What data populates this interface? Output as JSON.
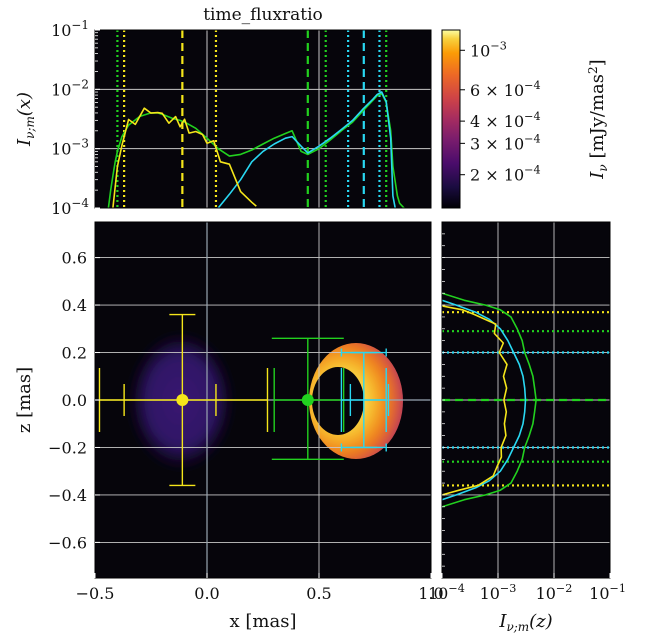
{
  "title": "time_fluxratio",
  "colors": {
    "background": "#06050b",
    "grid": "#c8c8c8",
    "yellow": "#f5e61a",
    "green": "#22d11f",
    "cyan": "#29d8f2",
    "crosshair": "#9aa6b2"
  },
  "chart_data": [
    {
      "type": "line",
      "panel": "top",
      "ylabel": "I_{ν;m}(x)",
      "xlim": [
        -0.5,
        1.0
      ],
      "ylim": [
        0.0001,
        0.1
      ],
      "yscale": "log",
      "ytick_labels": [
        "10^-4",
        "10^-3",
        "10^-2",
        "10^-1"
      ],
      "grid": true,
      "series": [
        {
          "color": "green",
          "x": [
            -0.44,
            -0.43,
            -0.42,
            -0.41,
            -0.4,
            -0.38,
            -0.35,
            -0.3,
            -0.25,
            -0.22,
            -0.2,
            -0.15,
            -0.12,
            -0.1,
            -0.05,
            0.0,
            0.05,
            0.1,
            0.15,
            0.2,
            0.25,
            0.3,
            0.35,
            0.38,
            0.42,
            0.45,
            0.5,
            0.55,
            0.6,
            0.65,
            0.7,
            0.74,
            0.76,
            0.78,
            0.8,
            0.82,
            0.83,
            0.85,
            0.86,
            0.88
          ],
          "y": [
            0.0001,
            0.0002,
            0.00035,
            0.0006,
            0.0009,
            0.0016,
            0.0025,
            0.0035,
            0.004,
            0.004,
            0.0038,
            0.0032,
            0.003,
            0.0028,
            0.0022,
            0.0015,
            0.001,
            0.00075,
            0.0008,
            0.00095,
            0.0012,
            0.0015,
            0.0018,
            0.002,
            0.0009,
            0.0008,
            0.001,
            0.0014,
            0.002,
            0.0028,
            0.0045,
            0.0065,
            0.0078,
            0.0085,
            0.006,
            0.002,
            0.0005,
            0.00016,
            0.00012,
            0.0001
          ]
        },
        {
          "color": "cyan",
          "x": [
            0.05,
            0.1,
            0.15,
            0.2,
            0.25,
            0.3,
            0.35,
            0.38,
            0.42,
            0.45,
            0.5,
            0.55,
            0.6,
            0.65,
            0.7,
            0.74,
            0.76,
            0.78,
            0.8,
            0.82,
            0.83,
            0.84
          ],
          "y": [
            0.0001,
            0.00017,
            0.0003,
            0.0006,
            0.0009,
            0.0012,
            0.0015,
            0.0016,
            0.0011,
            0.00085,
            0.0011,
            0.0015,
            0.0021,
            0.003,
            0.0048,
            0.0068,
            0.0082,
            0.009,
            0.0062,
            0.0015,
            0.00016,
            0.0001
          ]
        },
        {
          "color": "yellow",
          "x": [
            -0.42,
            -0.4,
            -0.38,
            -0.35,
            -0.32,
            -0.28,
            -0.25,
            -0.22,
            -0.2,
            -0.17,
            -0.14,
            -0.12,
            -0.1,
            -0.08,
            -0.05,
            -0.02,
            0.0,
            0.03,
            0.06,
            0.1,
            0.15,
            0.2,
            0.22
          ],
          "y": [
            0.0001,
            0.00045,
            0.0014,
            0.0025,
            0.0034,
            0.004,
            0.0045,
            0.004,
            0.0036,
            0.0033,
            0.0028,
            0.0031,
            0.0026,
            0.0021,
            0.0019,
            0.0016,
            0.0015,
            0.0011,
            0.0008,
            0.00045,
            0.00022,
            0.00012,
            0.0001
          ]
        }
      ],
      "vlines": [
        {
          "x": -0.4,
          "color": "green",
          "style": "dotted"
        },
        {
          "x": -0.37,
          "color": "yellow",
          "style": "dotted"
        },
        {
          "x": -0.11,
          "color": "yellow",
          "style": "dashed"
        },
        {
          "x": 0.0,
          "color": "crosshair",
          "style": "solid"
        },
        {
          "x": 0.04,
          "color": "yellow",
          "style": "dotted"
        },
        {
          "x": 0.45,
          "color": "green",
          "style": "dashed"
        },
        {
          "x": 0.53,
          "color": "green",
          "style": "dotted"
        },
        {
          "x": 0.63,
          "color": "cyan",
          "style": "dotted"
        },
        {
          "x": 0.7,
          "color": "cyan",
          "style": "dashed"
        },
        {
          "x": 0.77,
          "color": "cyan",
          "style": "dotted"
        },
        {
          "x": 0.8,
          "color": "green",
          "style": "dotted"
        }
      ]
    },
    {
      "type": "heatmap",
      "panel": "main",
      "xlabel": "x [mas]",
      "ylabel": "z [mas]",
      "xlim": [
        -0.5,
        1.0
      ],
      "ylim": [
        -0.75,
        0.75
      ],
      "xtick_labels": [
        "-0.5",
        "0.0",
        "0.5",
        "1.0"
      ],
      "ytick_labels": [
        "-0.6",
        "-0.4",
        "-0.2",
        "0.0",
        "0.2",
        "0.4",
        "0.6"
      ],
      "grid": true,
      "sources": [
        {
          "color": "yellow",
          "x": -0.11,
          "z": 0.0,
          "x_err": [
            0.37,
            0.38
          ],
          "x_err_inner": [
            0.26,
            0.15
          ],
          "z_err": 0.36
        },
        {
          "color": "green",
          "x": 0.45,
          "z": 0.0,
          "x_err": [
            0.15,
            0.16
          ],
          "z_err": [
            0.26,
            0.25
          ]
        },
        {
          "color": "cyan",
          "x": 0.7,
          "z": 0.0,
          "x_err": [
            0.1,
            0.1
          ],
          "x_err_inner": [
            0.06,
            0.11
          ],
          "z_err": 0.2
        }
      ],
      "colorbar": {
        "label": "I_ν [mJy/mas²]",
        "scale": "log",
        "tick_labels": [
          "2 × 10^-4",
          "3 × 10^-4",
          "4 × 10^-4",
          "6 × 10^-4",
          "10^-3"
        ],
        "tick_values": [
          0.0002,
          0.0003,
          0.0004,
          0.0006,
          0.001
        ],
        "range": [
          0.00013,
          0.0013
        ]
      }
    },
    {
      "type": "line",
      "panel": "right",
      "xlabel": "I_{ν;m}(z)",
      "xlim": [
        0.0001,
        0.1
      ],
      "xscale": "log",
      "xtick_labels": [
        "10^-4",
        "10^-3",
        "10^-2",
        "10^-1"
      ],
      "ylim": [
        -0.75,
        0.75
      ],
      "grid": true,
      "series": [
        {
          "color": "green",
          "z": [
            -0.45,
            -0.42,
            -0.4,
            -0.38,
            -0.35,
            -0.3,
            -0.25,
            -0.2,
            -0.15,
            -0.1,
            -0.05,
            0.0,
            0.05,
            0.1,
            0.15,
            0.2,
            0.25,
            0.3,
            0.35,
            0.38,
            0.4,
            0.42,
            0.45
          ],
          "v": [
            0.0001,
            0.00025,
            0.0006,
            0.0011,
            0.0017,
            0.0022,
            0.0027,
            0.003,
            0.0036,
            0.0042,
            0.0045,
            0.0048,
            0.0045,
            0.0042,
            0.0036,
            0.003,
            0.0027,
            0.0022,
            0.0017,
            0.0011,
            0.0006,
            0.00025,
            0.0001
          ]
        },
        {
          "color": "cyan",
          "z": [
            -0.42,
            -0.4,
            -0.37,
            -0.34,
            -0.3,
            -0.25,
            -0.2,
            -0.15,
            -0.1,
            -0.05,
            0.0,
            0.05,
            0.1,
            0.15,
            0.2,
            0.25,
            0.3,
            0.34,
            0.37,
            0.4,
            0.42
          ],
          "v": [
            0.0001,
            0.00018,
            0.0004,
            0.0007,
            0.0011,
            0.0015,
            0.0019,
            0.0024,
            0.0028,
            0.003,
            0.0031,
            0.003,
            0.0028,
            0.0024,
            0.0019,
            0.0015,
            0.0011,
            0.0007,
            0.0004,
            0.00018,
            0.0001
          ]
        },
        {
          "color": "yellow",
          "z": [
            -0.4,
            -0.38,
            -0.36,
            -0.32,
            -0.28,
            -0.24,
            -0.2,
            -0.15,
            -0.1,
            -0.05,
            0.0,
            0.05,
            0.1,
            0.15,
            0.2,
            0.24,
            0.28,
            0.32,
            0.36,
            0.38,
            0.4
          ],
          "v": [
            0.0001,
            0.0002,
            0.00045,
            0.0008,
            0.001,
            0.0011,
            0.0012,
            0.0013,
            0.0014,
            0.0013,
            0.0014,
            0.0013,
            0.0014,
            0.0013,
            0.0012,
            0.0011,
            0.001,
            0.0008,
            0.00045,
            0.0002,
            0.0001
          ]
        }
      ],
      "hlines": [
        {
          "z": 0.37,
          "color": "yellow",
          "style": "dotted"
        },
        {
          "z": 0.29,
          "color": "green",
          "style": "dotted"
        },
        {
          "z": 0.2,
          "color": "cyan",
          "style": "dotted"
        },
        {
          "z": 0.0,
          "color": "green",
          "style": "dashed"
        },
        {
          "z": -0.2,
          "color": "cyan",
          "style": "dotted"
        },
        {
          "z": -0.26,
          "color": "green",
          "style": "dotted"
        },
        {
          "z": -0.36,
          "color": "yellow",
          "style": "dotted"
        }
      ]
    }
  ]
}
